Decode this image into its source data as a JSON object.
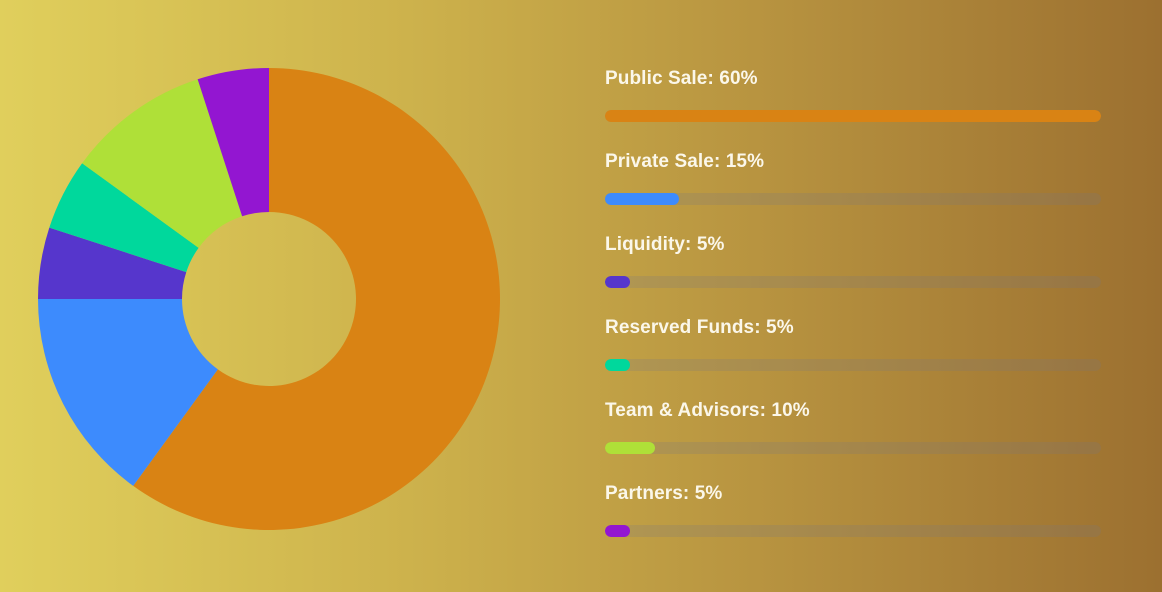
{
  "chart_data": {
    "type": "pie",
    "variant": "donut",
    "title": "",
    "categories": [
      "Public Sale",
      "Private Sale",
      "Liquidity",
      "Reserved Funds",
      "Team & Advisors",
      "Partners"
    ],
    "values": [
      60,
      15,
      5,
      5,
      10,
      5
    ],
    "colors": [
      "#d98314",
      "#3d8bfd",
      "#5636cc",
      "#00d89c",
      "#afe038",
      "#9316d1"
    ],
    "unit": "%",
    "start_angle": "top, clockwise",
    "legend_position": "right (progress bars)"
  },
  "legend": [
    {
      "label": "Public Sale: 60%",
      "percent": 60,
      "color": "#d98314"
    },
    {
      "label": "Private Sale: 15%",
      "percent": 15,
      "color": "#3d8bfd"
    },
    {
      "label": "Liquidity: 5%",
      "percent": 5,
      "color": "#5636cc"
    },
    {
      "label": "Reserved Funds: 5%",
      "percent": 5,
      "color": "#00d89c"
    },
    {
      "label": "Team & Advisors: 10%",
      "percent": 10,
      "color": "#afe038"
    },
    {
      "label": "Partners: 5%",
      "percent": 5,
      "color": "#9316d1"
    }
  ]
}
